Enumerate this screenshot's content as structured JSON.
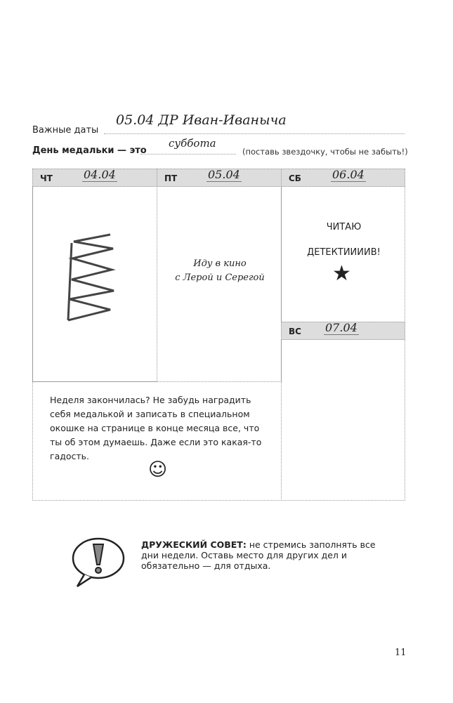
{
  "important_dates": {
    "label": "Важные даты",
    "value": "05.04 ДР Иван-Иваныча"
  },
  "medal_day": {
    "label": "День медальки — это",
    "value": "суббота",
    "hint": "(поставь звездочку, чтобы не забыть!)"
  },
  "days": [
    {
      "name": "ЧТ",
      "date": "04.04"
    },
    {
      "name": "ПТ",
      "date": "05.04",
      "note_lines": [
        "Иду в кино",
        "с Лерой и Серегой"
      ]
    },
    {
      "name": "СБ",
      "date": "06.04",
      "note_lines": [
        "ЧИТАЮ",
        "ДЕТЕКТИИИИВ!"
      ]
    },
    {
      "name": "ВС",
      "date": "07.04"
    }
  ],
  "week_end_note": "Неделя закончилась? Не забудь наградить себя медалькой и записать в специальном окошке на странице в конце месяца все, что ты об этом думаешь. Даже если это какая-то гадость.",
  "advice": {
    "title": "ДРУЖЕСКИЙ СОВЕТ:",
    "text": "не стремись заполнять все дни недели. Оставь место для других дел и обязательно — для отдыха."
  },
  "page_number": "11"
}
